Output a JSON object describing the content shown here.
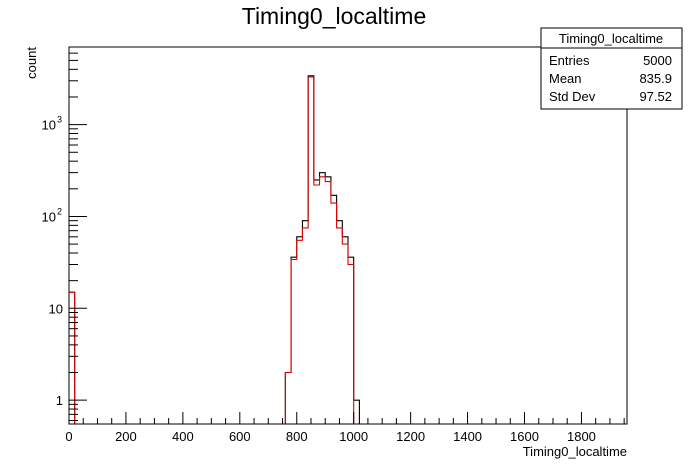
{
  "chart_data": {
    "type": "histogram",
    "title": "Timing0_localtime",
    "xlabel": "Timing0_localtime",
    "ylabel": "count",
    "xlim": [
      0,
      1960
    ],
    "ylim": [
      0.55,
      7000
    ],
    "yscale": "log",
    "grid": false,
    "bin_width": 20,
    "x_ticks": [
      {
        "value": 0,
        "label": "0"
      },
      {
        "value": 200,
        "label": "200"
      },
      {
        "value": 400,
        "label": "400"
      },
      {
        "value": 600,
        "label": "600"
      },
      {
        "value": 800,
        "label": "800"
      },
      {
        "value": 1000,
        "label": "1000"
      },
      {
        "value": 1200,
        "label": "1200"
      },
      {
        "value": 1400,
        "label": "1400"
      },
      {
        "value": 1600,
        "label": "1600"
      },
      {
        "value": 1800,
        "label": "1800"
      }
    ],
    "y_ticks": [
      {
        "value": 1,
        "base": "1",
        "exp": ""
      },
      {
        "value": 10,
        "base": "10",
        "exp": ""
      },
      {
        "value": 100,
        "base": "10",
        "exp": "2"
      },
      {
        "value": 1000,
        "base": "10",
        "exp": "3"
      }
    ],
    "series": [
      {
        "color": "#000000",
        "bins": [
          {
            "x": 0,
            "y": 15
          },
          {
            "x": 760,
            "y": 2
          },
          {
            "x": 780,
            "y": 36
          },
          {
            "x": 800,
            "y": 60
          },
          {
            "x": 820,
            "y": 90
          },
          {
            "x": 840,
            "y": 3400
          },
          {
            "x": 860,
            "y": 250
          },
          {
            "x": 880,
            "y": 300
          },
          {
            "x": 900,
            "y": 270
          },
          {
            "x": 920,
            "y": 170
          },
          {
            "x": 940,
            "y": 90
          },
          {
            "x": 960,
            "y": 60
          },
          {
            "x": 980,
            "y": 36
          },
          {
            "x": 1000,
            "y": 1
          }
        ]
      },
      {
        "color": "#e00000",
        "bins": [
          {
            "x": 0,
            "y": 15
          },
          {
            "x": 760,
            "y": 2
          },
          {
            "x": 780,
            "y": 34
          },
          {
            "x": 800,
            "y": 55
          },
          {
            "x": 820,
            "y": 75
          },
          {
            "x": 840,
            "y": 3300
          },
          {
            "x": 860,
            "y": 220
          },
          {
            "x": 880,
            "y": 270
          },
          {
            "x": 900,
            "y": 240
          },
          {
            "x": 920,
            "y": 140
          },
          {
            "x": 940,
            "y": 75
          },
          {
            "x": 960,
            "y": 50
          },
          {
            "x": 980,
            "y": 30
          }
        ]
      }
    ],
    "stats_box": {
      "placement": "top-right",
      "title": "Timing0_localtime",
      "rows": [
        {
          "label": "Entries",
          "value": "5000"
        },
        {
          "label": "Mean",
          "value": "835.9"
        },
        {
          "label": "Std Dev",
          "value": "97.52"
        }
      ]
    }
  }
}
